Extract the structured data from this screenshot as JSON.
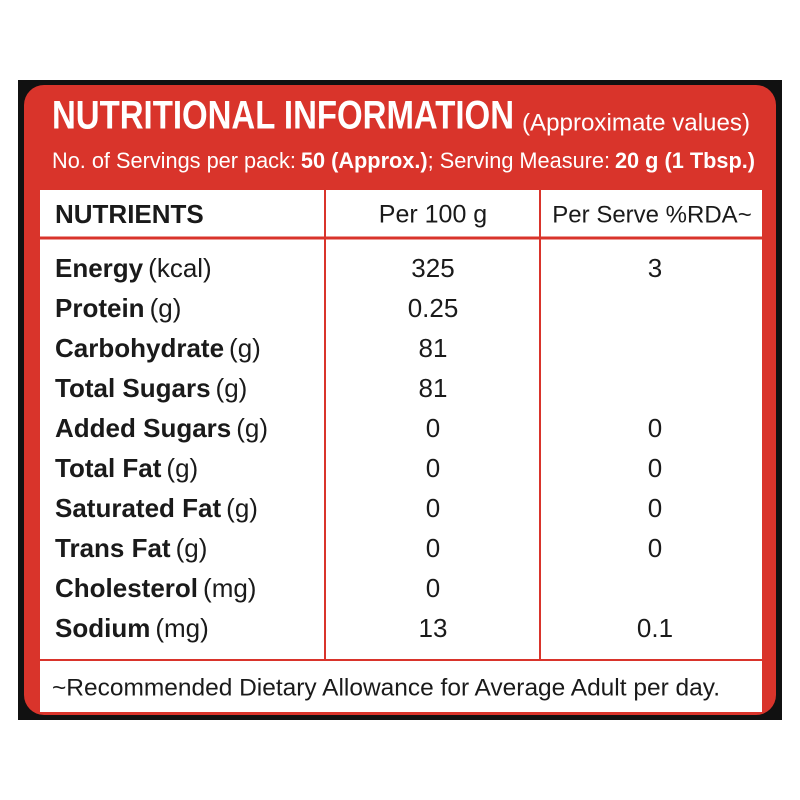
{
  "header": {
    "title": "NUTRITIONAL INFORMATION",
    "subtitle": "(Approximate values)",
    "servings": {
      "label": "No. of Servings per pack:",
      "value": "50 (Approx.)",
      "measure_label": "; Serving Measure:",
      "measure_value": "20 g (1 Tbsp.)"
    }
  },
  "table": {
    "columns": [
      "NUTRIENTS",
      "Per 100 g",
      "Per Serve %RDA~"
    ],
    "rows": [
      {
        "name": "Energy",
        "unit": "(kcal)",
        "per_100g": "325",
        "per_serve": "3"
      },
      {
        "name": "Protein",
        "unit": "(g)",
        "per_100g": "0.25",
        "per_serve": null
      },
      {
        "name": "Carbohydrate",
        "unit": "(g)",
        "per_100g": "81",
        "per_serve": null
      },
      {
        "name": "Total Sugars",
        "unit": "(g)",
        "per_100g": "81",
        "per_serve": null
      },
      {
        "name": "Added Sugars",
        "unit": "(g)",
        "per_100g": "0",
        "per_serve": "0"
      },
      {
        "name": "Total Fat",
        "unit": "(g)",
        "per_100g": "0",
        "per_serve": "0"
      },
      {
        "name": "Saturated Fat",
        "unit": "(g)",
        "per_100g": "0",
        "per_serve": "0"
      },
      {
        "name": "Trans Fat",
        "unit": "(g)",
        "per_100g": "0",
        "per_serve": "0"
      },
      {
        "name": "Cholesterol",
        "unit": "(mg)",
        "per_100g": "0",
        "per_serve": null
      },
      {
        "name": "Sodium",
        "unit": "(mg)",
        "per_100g": "13",
        "per_serve": "0.1"
      }
    ]
  },
  "footnote": "~Recommended Dietary Allowance for Average Adult per day."
}
